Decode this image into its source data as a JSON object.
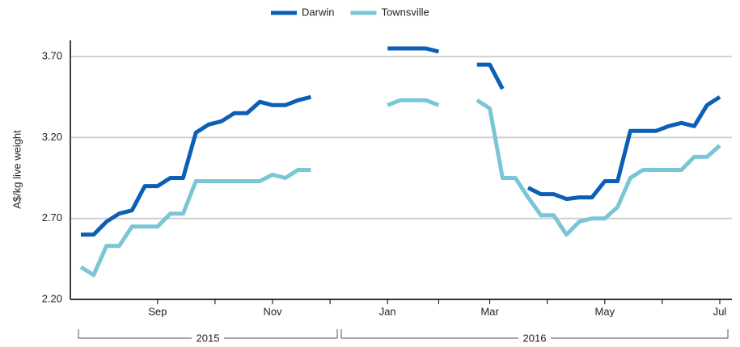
{
  "chart_data": {
    "type": "line",
    "y_label": "A$/kg live weight",
    "categories": [
      null,
      null,
      null,
      null,
      null,
      null,
      "Sep",
      null,
      null,
      null,
      null,
      null,
      null,
      null,
      null,
      "Nov",
      null,
      null,
      null,
      null,
      null,
      null,
      null,
      null,
      "Jan",
      null,
      null,
      null,
      null,
      null,
      null,
      null,
      "Mar",
      null,
      null,
      null,
      null,
      null,
      null,
      null,
      null,
      "May",
      null,
      null,
      null,
      null,
      null,
      null,
      null,
      null,
      "Jul"
    ],
    "year_labels": [
      "2015",
      "2016"
    ],
    "series": [
      {
        "name": "Darwin",
        "color": "#0b5fb5",
        "values": [
          2.6,
          2.6,
          2.68,
          2.73,
          2.75,
          2.9,
          2.9,
          2.95,
          2.95,
          3.23,
          3.28,
          3.3,
          3.35,
          3.35,
          3.42,
          3.4,
          3.4,
          3.43,
          3.45,
          null,
          null,
          null,
          null,
          null,
          3.75,
          3.75,
          3.75,
          3.75,
          3.73,
          null,
          null,
          3.65,
          3.65,
          3.5,
          null,
          2.89,
          2.85,
          2.85,
          2.82,
          2.83,
          2.83,
          2.93,
          2.93,
          3.24,
          3.24,
          3.24,
          3.27,
          3.29,
          3.27,
          3.4,
          3.45
        ]
      },
      {
        "name": "Townsville",
        "color": "#7ac5d6",
        "values": [
          2.4,
          2.35,
          2.53,
          2.53,
          2.65,
          2.65,
          2.65,
          2.73,
          2.73,
          2.93,
          2.93,
          2.93,
          2.93,
          2.93,
          2.93,
          2.97,
          2.95,
          3.0,
          3.0,
          null,
          null,
          null,
          null,
          null,
          3.4,
          3.43,
          3.43,
          3.43,
          3.4,
          null,
          null,
          3.43,
          3.38,
          2.95,
          2.95,
          2.83,
          2.72,
          2.72,
          2.6,
          2.68,
          2.7,
          2.7,
          2.77,
          2.95,
          3.0,
          3.0,
          3.0,
          3.0,
          3.08,
          3.08,
          3.15
        ]
      }
    ],
    "ylim": [
      2.2,
      3.8
    ],
    "yticks": [
      {
        "value": 2.2,
        "label": "2.20"
      },
      {
        "value": 2.7,
        "label": "2.70"
      },
      {
        "value": 3.2,
        "label": "3.20"
      },
      {
        "value": 3.7,
        "label": "3.70"
      }
    ],
    "grid": true
  }
}
